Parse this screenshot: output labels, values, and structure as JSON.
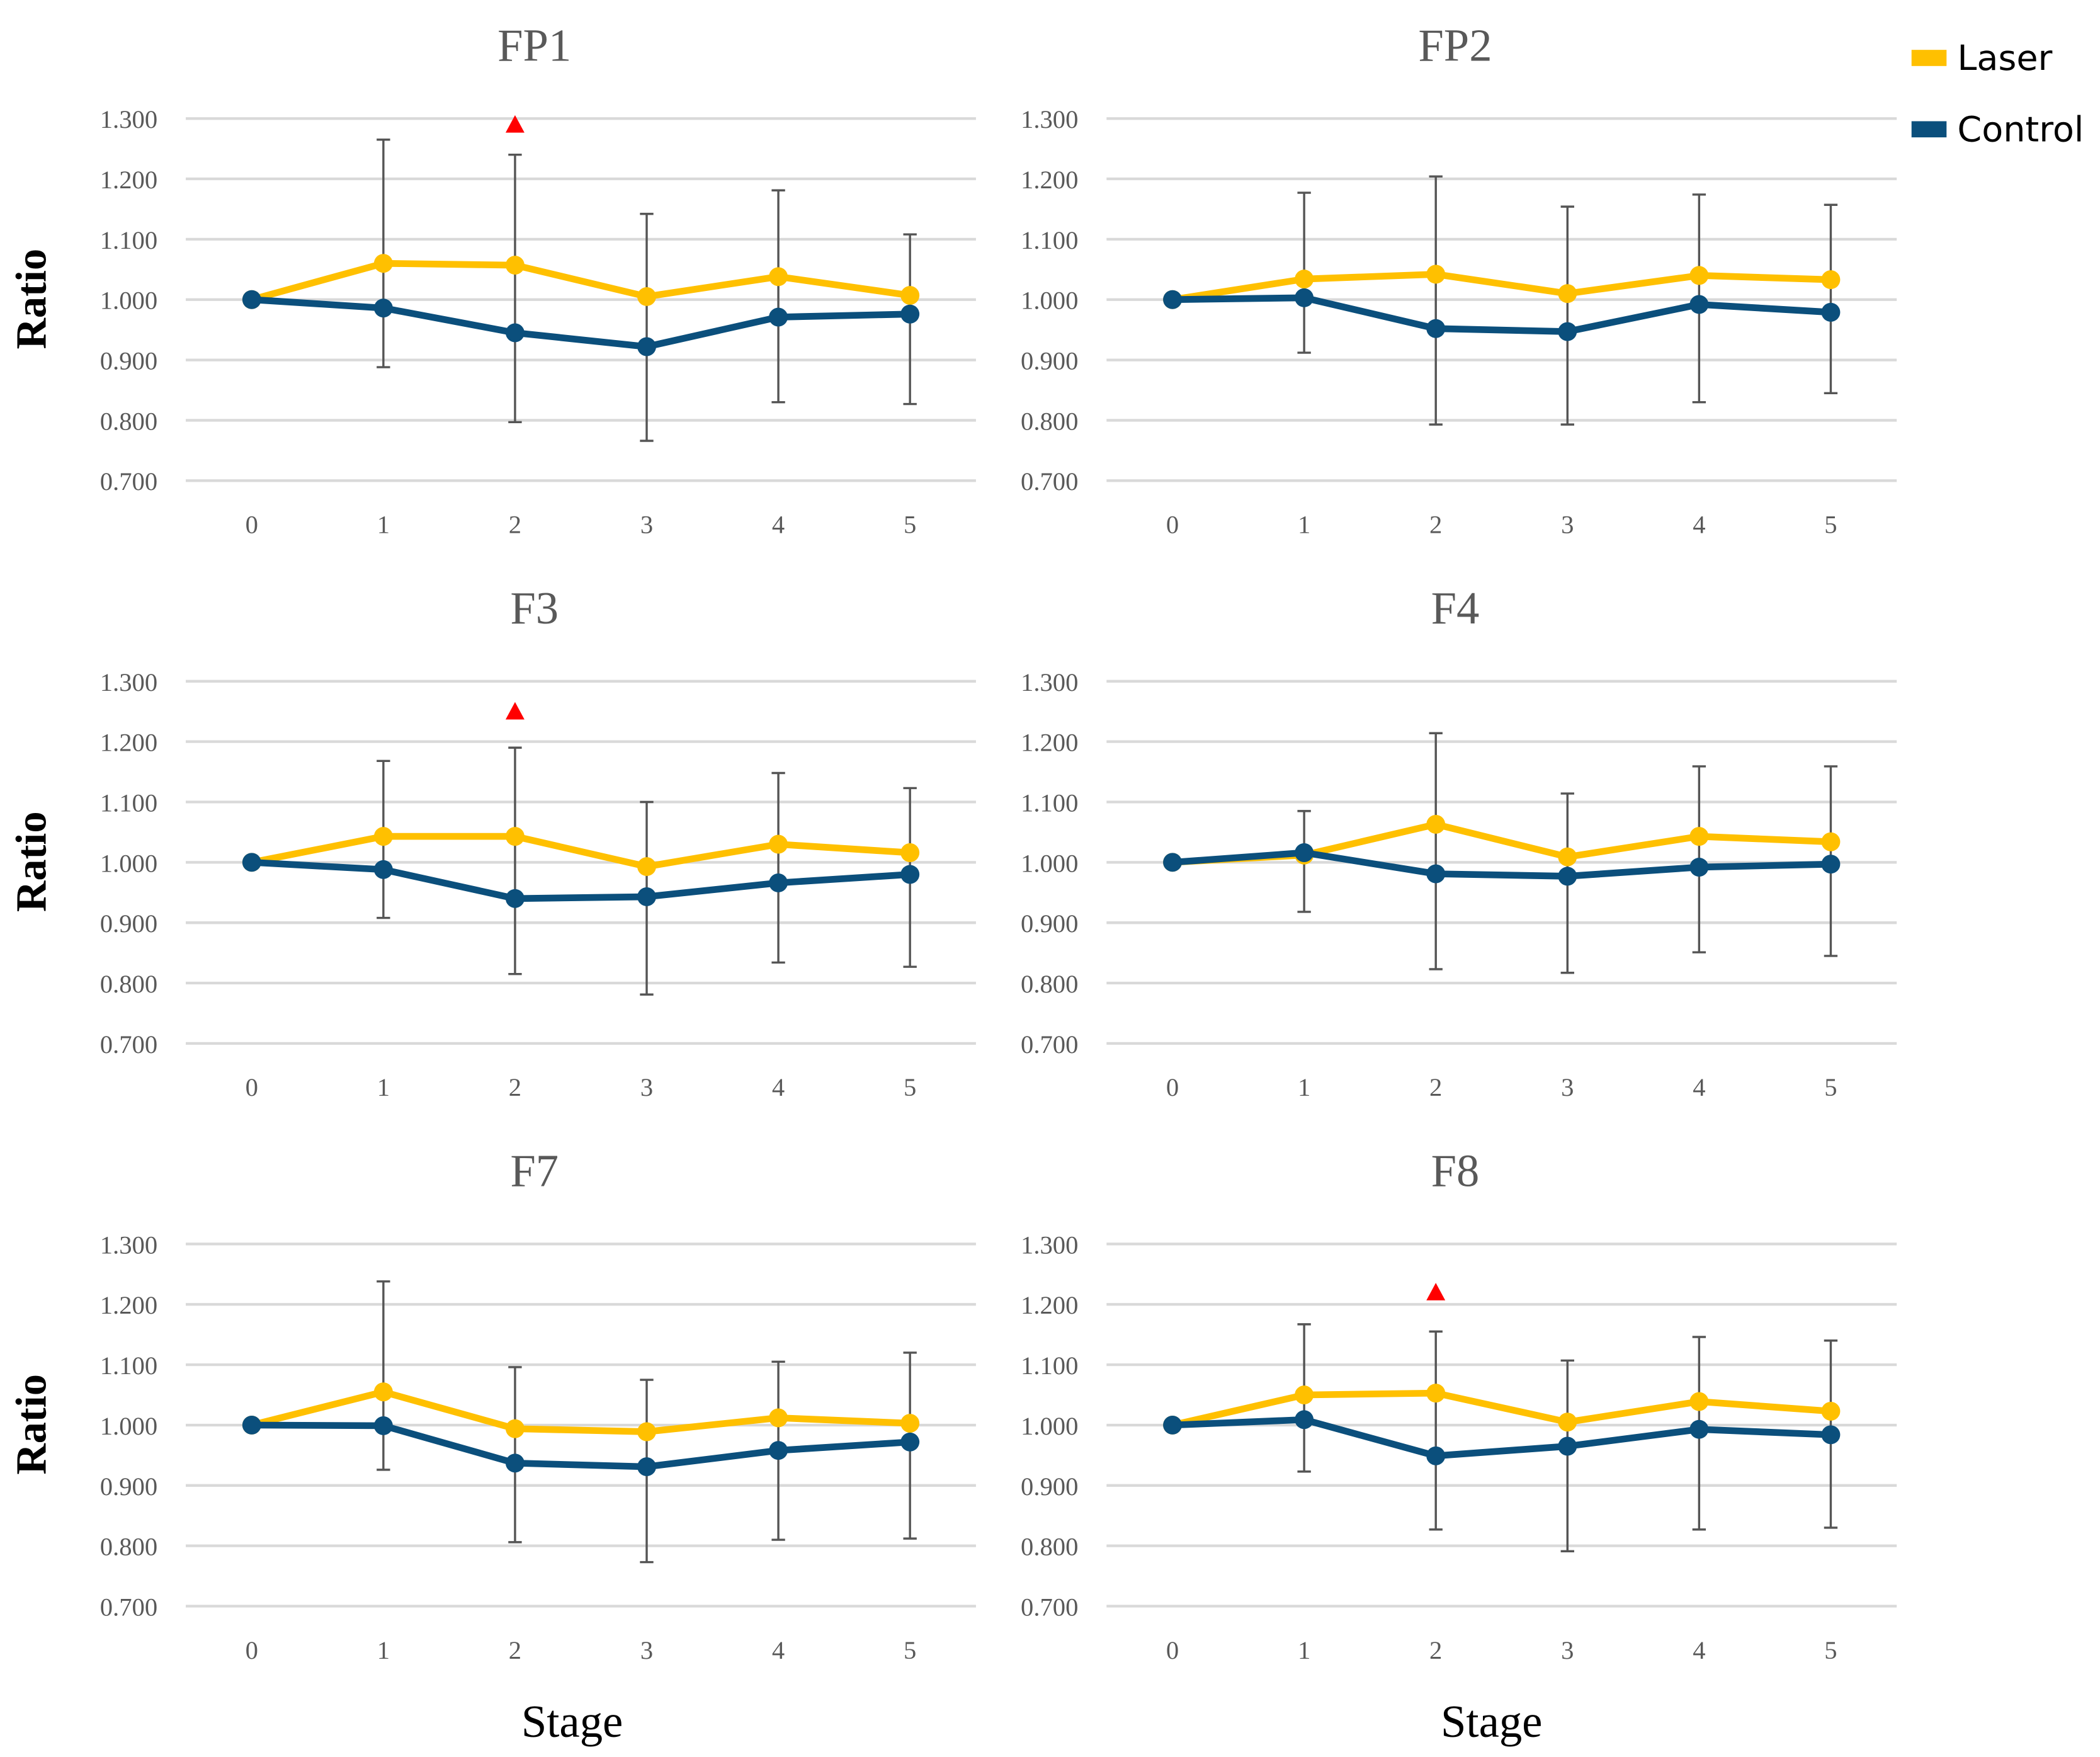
{
  "legend": [
    {
      "label": "Laser",
      "color": "#FFC000"
    },
    {
      "label": "Control",
      "color": "#0B4F7C"
    }
  ],
  "xlabel": "Stage",
  "chart_data": [
    {
      "type": "line",
      "title": "FP1",
      "ylabel": "Ratio",
      "xlabel": "",
      "x": [
        0,
        1,
        2,
        3,
        4,
        5
      ],
      "ylim": [
        0.7,
        1.3
      ],
      "yticks": [
        "0.700",
        "0.800",
        "0.900",
        "1.000",
        "1.100",
        "1.200",
        "1.300"
      ],
      "grid": true,
      "series": [
        {
          "name": "Laser",
          "values": [
            1.0,
            1.06,
            1.057,
            1.005,
            1.038,
            1.007
          ],
          "error_upper": [
            null,
            1.265,
            1.24,
            1.142,
            1.181,
            1.108
          ]
        },
        {
          "name": "Control",
          "values": [
            1.0,
            0.986,
            0.945,
            0.922,
            0.971,
            0.976
          ],
          "error_lower": [
            null,
            0.888,
            0.797,
            0.766,
            0.83,
            0.827
          ]
        }
      ],
      "significance": [
        {
          "x": 2,
          "y": 1.29,
          "marker": "triangle",
          "color": "#FF0000"
        }
      ]
    },
    {
      "type": "line",
      "title": "FP2",
      "ylabel": "",
      "xlabel": "Stage",
      "x": [
        0,
        1,
        2,
        3,
        4,
        5
      ],
      "ylim": [
        0.7,
        1.3
      ],
      "yticks": [
        "0.700",
        "0.800",
        "0.900",
        "1.000",
        "1.100",
        "1.200",
        "1.300"
      ],
      "grid": true,
      "series": [
        {
          "name": "Laser",
          "values": [
            1.0,
            1.034,
            1.042,
            1.01,
            1.04,
            1.033
          ],
          "error_upper": [
            null,
            1.177,
            1.204,
            1.154,
            1.174,
            1.157
          ]
        },
        {
          "name": "Control",
          "values": [
            1.0,
            1.003,
            0.952,
            0.947,
            0.992,
            0.979
          ],
          "error_lower": [
            null,
            0.912,
            0.793,
            0.793,
            0.83,
            0.845
          ]
        }
      ],
      "significance": []
    },
    {
      "type": "line",
      "title": "F3",
      "ylabel": "Ratio",
      "xlabel": "",
      "x": [
        0,
        1,
        2,
        3,
        4,
        5
      ],
      "ylim": [
        0.7,
        1.3
      ],
      "yticks": [
        "0.700",
        "0.800",
        "0.900",
        "1.000",
        "1.100",
        "1.200",
        "1.300"
      ],
      "grid": true,
      "series": [
        {
          "name": "Laser",
          "values": [
            1.0,
            1.043,
            1.043,
            0.993,
            1.03,
            1.016
          ],
          "error_upper": [
            null,
            1.168,
            1.19,
            1.1,
            1.148,
            1.123
          ]
        },
        {
          "name": "Control",
          "values": [
            1.0,
            0.988,
            0.94,
            0.943,
            0.966,
            0.98
          ],
          "error_lower": [
            null,
            0.908,
            0.815,
            0.781,
            0.834,
            0.827
          ]
        }
      ],
      "significance": [
        {
          "x": 2,
          "y": 1.25,
          "marker": "triangle",
          "color": "#FF0000"
        }
      ]
    },
    {
      "type": "line",
      "title": "F4",
      "ylabel": "",
      "xlabel": "",
      "x": [
        0,
        1,
        2,
        3,
        4,
        5
      ],
      "ylim": [
        0.7,
        1.3
      ],
      "yticks": [
        "0.700",
        "0.800",
        "0.900",
        "1.000",
        "1.100",
        "1.200",
        "1.300"
      ],
      "grid": true,
      "series": [
        {
          "name": "Laser",
          "values": [
            1.0,
            1.012,
            1.063,
            1.009,
            1.043,
            1.034
          ],
          "error_upper": [
            null,
            1.085,
            1.214,
            1.114,
            1.159,
            1.159
          ]
        },
        {
          "name": "Control",
          "values": [
            1.0,
            1.016,
            0.981,
            0.977,
            0.992,
            0.997
          ],
          "error_lower": [
            null,
            0.918,
            0.823,
            0.817,
            0.851,
            0.845
          ]
        }
      ],
      "significance": []
    },
    {
      "type": "line",
      "title": "F7",
      "ylabel": "Ratio",
      "xlabel": "Stage",
      "x": [
        0,
        1,
        2,
        3,
        4,
        5
      ],
      "ylim": [
        0.7,
        1.3
      ],
      "yticks": [
        "0.700",
        "0.800",
        "0.900",
        "1.000",
        "1.100",
        "1.200",
        "1.300"
      ],
      "grid": true,
      "series": [
        {
          "name": "Laser",
          "values": [
            1.0,
            1.055,
            0.994,
            0.989,
            1.012,
            1.003
          ],
          "error_upper": [
            null,
            1.238,
            1.096,
            1.075,
            1.105,
            1.12
          ]
        },
        {
          "name": "Control",
          "values": [
            1.0,
            0.999,
            0.937,
            0.931,
            0.958,
            0.972
          ],
          "error_lower": [
            null,
            0.926,
            0.806,
            0.773,
            0.81,
            0.812
          ]
        }
      ],
      "significance": []
    },
    {
      "type": "line",
      "title": "F8",
      "ylabel": "",
      "xlabel": "Stage",
      "x": [
        0,
        1,
        2,
        3,
        4,
        5
      ],
      "ylim": [
        0.7,
        1.3
      ],
      "yticks": [
        "0.700",
        "0.800",
        "0.900",
        "1.000",
        "1.100",
        "1.200",
        "1.300"
      ],
      "grid": true,
      "series": [
        {
          "name": "Laser",
          "values": [
            1.0,
            1.05,
            1.053,
            1.005,
            1.039,
            1.023
          ],
          "error_upper": [
            null,
            1.167,
            1.155,
            1.107,
            1.146,
            1.14
          ]
        },
        {
          "name": "Control",
          "values": [
            1.0,
            1.009,
            0.949,
            0.965,
            0.993,
            0.984
          ],
          "error_lower": [
            null,
            0.923,
            0.827,
            0.791,
            0.827,
            0.83
          ]
        }
      ],
      "significance": [
        {
          "x": 2,
          "y": 1.22,
          "marker": "triangle",
          "color": "#FF0000"
        }
      ]
    }
  ]
}
